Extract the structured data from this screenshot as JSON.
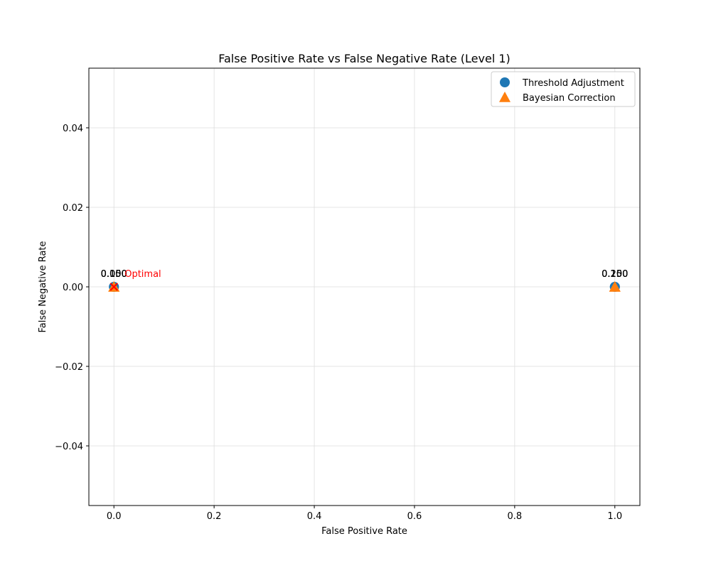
{
  "chart_data": {
    "type": "scatter",
    "title": "False Positive Rate vs False Negative Rate (Level 1)",
    "xlabel": "False Positive Rate",
    "ylabel": "False Negative Rate",
    "xlim": [
      -0.05,
      1.05
    ],
    "ylim": [
      -0.055,
      0.055
    ],
    "xticks": [
      0.0,
      0.2,
      0.4,
      0.6,
      0.8,
      1.0
    ],
    "xtick_labels": [
      "0.0",
      "0.2",
      "0.4",
      "0.6",
      "0.8",
      "1.0"
    ],
    "yticks": [
      -0.04,
      -0.02,
      0.0,
      0.02,
      0.04
    ],
    "ytick_labels": [
      "−0.04",
      "−0.02",
      "0.00",
      "0.02",
      "0.04"
    ],
    "grid": true,
    "legend_position": "top-right",
    "series": [
      {
        "name": "Threshold Adjustment",
        "marker": "circle",
        "color": "#1f77b4",
        "points": [
          {
            "x": 0.0,
            "y": 0.0,
            "label": "0.050"
          },
          {
            "x": 0.0,
            "y": 0.0,
            "label": "0.100"
          },
          {
            "x": 1.0,
            "y": 0.0,
            "label": "0.150"
          },
          {
            "x": 1.0,
            "y": 0.0,
            "label": "0.200"
          }
        ]
      },
      {
        "name": "Bayesian Correction",
        "marker": "triangle",
        "color": "#ff7f0e",
        "points": [
          {
            "x": 0.0,
            "y": 0.0,
            "label": "0.050"
          },
          {
            "x": 0.0,
            "y": 0.0,
            "label": "0.100"
          },
          {
            "x": 1.0,
            "y": 0.0,
            "label": "0.150"
          },
          {
            "x": 1.0,
            "y": 0.0,
            "label": "0.200"
          }
        ]
      }
    ],
    "annotations": [
      {
        "x": 0.0,
        "y": 0.0,
        "text": "Optimal",
        "color": "#ff0000",
        "marker": "x"
      }
    ]
  }
}
